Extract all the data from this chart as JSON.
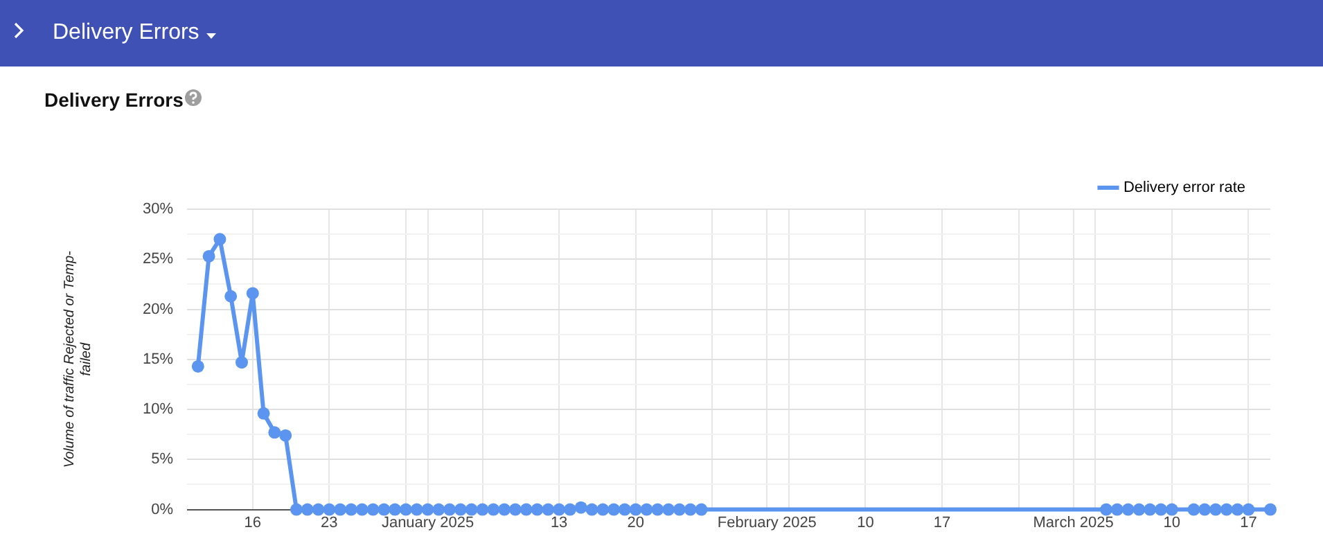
{
  "chart_data": {
    "type": "line",
    "title": "Delivery Errors",
    "ylabel": "Volume of traffic Rejected or Temp-failed",
    "x": [
      "2024-12-11",
      "2024-12-12",
      "2024-12-13",
      "2024-12-14",
      "2024-12-15",
      "2024-12-16",
      "2024-12-17",
      "2024-12-18",
      "2024-12-19",
      "2024-12-20",
      "2024-12-21",
      "2024-12-22",
      "2024-12-23",
      "2024-12-24",
      "2024-12-25",
      "2024-12-26",
      "2024-12-27",
      "2024-12-28",
      "2024-12-29",
      "2024-12-30",
      "2024-12-31",
      "2025-01-01",
      "2025-01-02",
      "2025-01-03",
      "2025-01-04",
      "2025-01-05",
      "2025-01-06",
      "2025-01-07",
      "2025-01-08",
      "2025-01-09",
      "2025-01-10",
      "2025-01-11",
      "2025-01-12",
      "2025-01-13",
      "2025-01-14",
      "2025-01-15",
      "2025-01-16",
      "2025-01-17",
      "2025-01-18",
      "2025-01-19",
      "2025-01-20",
      "2025-01-21",
      "2025-01-22",
      "2025-01-23",
      "2025-01-24",
      "2025-01-25",
      "2025-01-26",
      "2025-03-04",
      "2025-03-05",
      "2025-03-06",
      "2025-03-07",
      "2025-03-08",
      "2025-03-09",
      "2025-03-10",
      "2025-03-12",
      "2025-03-13",
      "2025-03-14",
      "2025-03-15",
      "2025-03-16",
      "2025-03-17",
      "2025-03-19"
    ],
    "series": [
      {
        "name": "Delivery error rate",
        "color": "#5b95f0",
        "values": [
          14.3,
          25.3,
          27,
          21.3,
          14.7,
          21.6,
          9.6,
          7.7,
          7.4,
          0,
          0,
          0,
          0,
          0,
          0,
          0,
          0,
          0,
          0,
          0,
          0,
          0,
          0,
          0,
          0,
          0,
          0,
          0,
          0,
          0,
          0,
          0,
          0,
          0,
          0,
          0.2,
          0,
          0,
          0,
          0,
          0,
          0,
          0,
          0,
          0,
          0,
          0,
          0,
          0,
          0,
          0,
          0,
          0,
          0,
          0,
          0,
          0,
          0,
          0,
          0,
          0
        ]
      }
    ],
    "xlim": [
      "2024-12-10",
      "2025-03-19"
    ],
    "xticks": [
      {
        "value": "2024-12-16",
        "label": "16"
      },
      {
        "value": "2024-12-23",
        "label": "23"
      },
      {
        "value": "2024-12-30",
        "label": null
      },
      {
        "value": "2025-01-01",
        "label": "January 2025"
      },
      {
        "value": "2025-01-06",
        "label": null
      },
      {
        "value": "2025-01-13",
        "label": "13"
      },
      {
        "value": "2025-01-20",
        "label": "20"
      },
      {
        "value": "2025-01-27",
        "label": null
      },
      {
        "value": "2025-02-01",
        "label": "February 2025"
      },
      {
        "value": "2025-02-03",
        "label": null
      },
      {
        "value": "2025-02-10",
        "label": "10"
      },
      {
        "value": "2025-02-17",
        "label": "17"
      },
      {
        "value": "2025-02-24",
        "label": null
      },
      {
        "value": "2025-03-01",
        "label": "March 2025"
      },
      {
        "value": "2025-03-03",
        "label": null
      },
      {
        "value": "2025-03-10",
        "label": "10"
      },
      {
        "value": "2025-03-17",
        "label": "17"
      }
    ],
    "ylim": [
      0,
      30
    ],
    "yticks": [
      {
        "value": 0,
        "label": "0%"
      },
      {
        "value": 2.5,
        "label": null
      },
      {
        "value": 5,
        "label": "5%"
      },
      {
        "value": 7.5,
        "label": null
      },
      {
        "value": 10,
        "label": "10%"
      },
      {
        "value": 12.5,
        "label": null
      },
      {
        "value": 15,
        "label": "15%"
      },
      {
        "value": 17.5,
        "label": null
      },
      {
        "value": 20,
        "label": "20%"
      },
      {
        "value": 22.5,
        "label": null
      },
      {
        "value": 25,
        "label": "25%"
      },
      {
        "value": 27.5,
        "label": null
      },
      {
        "value": 30,
        "label": "30%"
      }
    ],
    "grid": true,
    "legend": "top right",
    "marker": "circle",
    "line_style": "solid"
  }
}
